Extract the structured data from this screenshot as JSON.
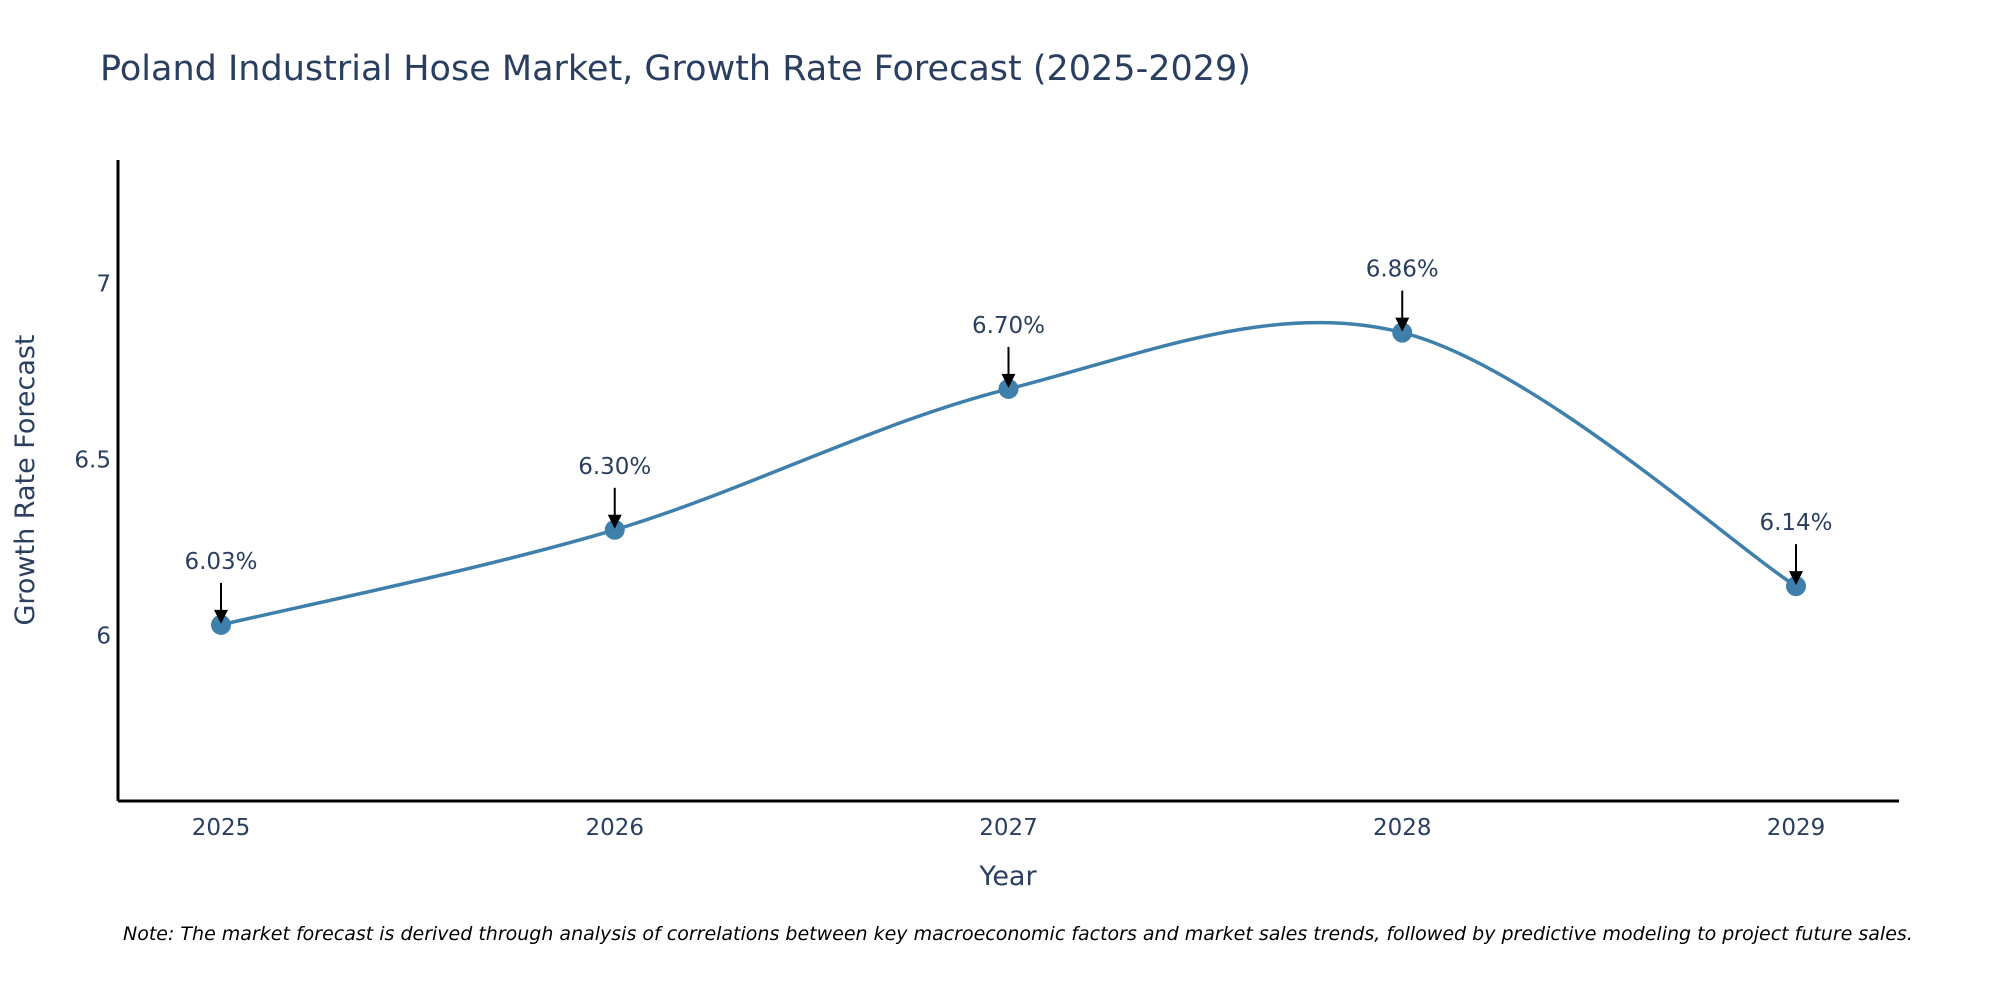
{
  "chart_data": {
    "type": "line",
    "title": "Poland Industrial Hose Market, Growth Rate Forecast (2025-2029)",
    "xlabel": "Year",
    "ylabel": "Growth Rate Forecast",
    "categories": [
      "2025",
      "2026",
      "2027",
      "2028",
      "2029"
    ],
    "values": [
      6.03,
      6.3,
      6.7,
      6.86,
      6.14
    ],
    "data_labels": [
      "6.03%",
      "6.30%",
      "6.70%",
      "6.86%",
      "6.14%"
    ],
    "ylim": [
      5.53,
      7.35
    ],
    "yticks": [
      6,
      6.5,
      7
    ],
    "ytick_labels": [
      "6",
      "6.5",
      "7"
    ],
    "line_shape": "spline",
    "grid": false,
    "series_color": "#3f7fac",
    "annotation_color": "#000000",
    "note": "Note: The market forecast is derived through analysis of correlations between key macroeconomic factors and market sales trends, followed by predictive modeling to project future sales."
  }
}
